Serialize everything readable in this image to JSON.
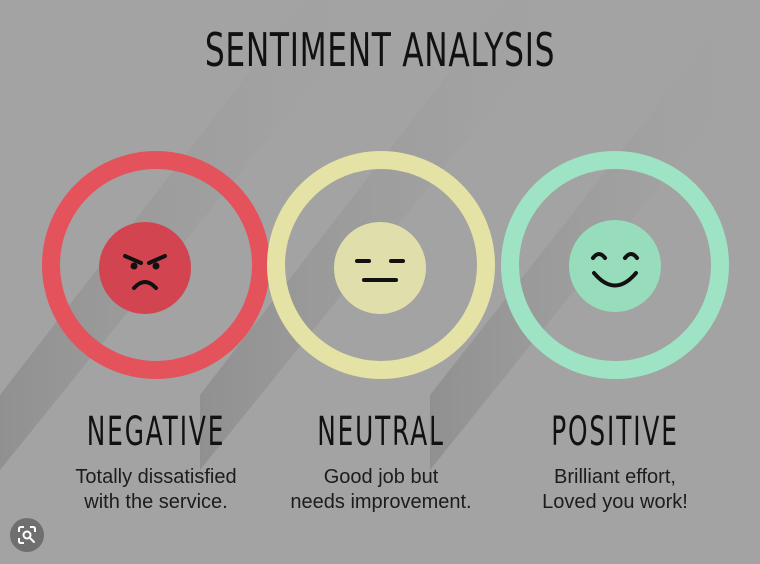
{
  "title": "SENTIMENT ANALYSIS",
  "colors": {
    "background": "#a3a3a3",
    "negative": "#e4525c",
    "neutral": "#e4e2a4",
    "positive": "#9ee3c3",
    "text": "#111111"
  },
  "cards": [
    {
      "label": "NEGATIVE",
      "line1": "Totally dissatisfied",
      "line2": "with the service.",
      "icon": "angry-face-icon"
    },
    {
      "label": "NEUTRAL",
      "line1": "Good job but",
      "line2": "needs improvement.",
      "icon": "neutral-face-icon"
    },
    {
      "label": "POSITIVE",
      "line1": "Brilliant effort,",
      "line2": "Loved you work!",
      "icon": "smiling-face-icon"
    }
  ],
  "overlay": {
    "icon": "lens-search-icon"
  }
}
